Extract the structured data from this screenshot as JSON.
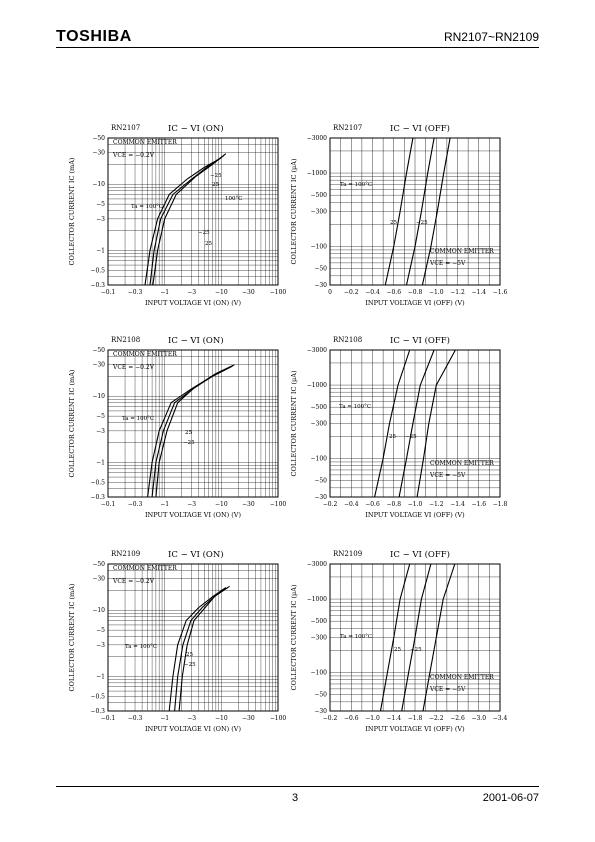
{
  "header": {
    "logo": "TOSHIBA",
    "part_range": "RN2107~RN2109"
  },
  "footer": {
    "page_number": "3",
    "date": "2001-06-07"
  },
  "chart_data": [
    {
      "type": "line",
      "device": "RN2107",
      "title": "IC − VI (ON)",
      "xlabel": "INPUT VOLTAGE  VI (ON)  (V)",
      "ylabel": "COLLECTOR CURRENT  IC  (mA)",
      "x_scale": "log",
      "y_scale": "log",
      "xlim": [
        -0.1,
        -100
      ],
      "ylim": [
        -0.3,
        -50
      ],
      "xticks": [
        "−0.1",
        "−0.3",
        "−1",
        "−3",
        "−10",
        "−30",
        "−100"
      ],
      "yticks": [
        "−50",
        "−30",
        "−10",
        "−5",
        "−3",
        "−1",
        "−0.5",
        "−0.3"
      ],
      "condition": [
        "COMMON EMITTER",
        "VCE = −0.2V"
      ],
      "annotations": [
        "Ta = 100°C",
        "−25",
        "25",
        "−25",
        "25",
        "100°C"
      ],
      "series": [
        {
          "name": "Ta = 100°C",
          "points": [
            [
              -0.45,
              -0.3
            ],
            [
              -0.55,
              -1
            ],
            [
              -0.75,
              -3
            ],
            [
              -1.2,
              -7
            ],
            [
              -2.5,
              -12
            ],
            [
              -5,
              -18
            ],
            [
              -10,
              -25
            ]
          ]
        },
        {
          "name": "25",
          "points": [
            [
              -0.55,
              -0.3
            ],
            [
              -0.65,
              -1
            ],
            [
              -0.85,
              -3
            ],
            [
              -1.4,
              -7
            ],
            [
              -3,
              -12
            ],
            [
              -6,
              -19
            ],
            [
              -11,
              -27
            ]
          ]
        },
        {
          "name": "−25",
          "points": [
            [
              -0.62,
              -0.3
            ],
            [
              -0.75,
              -1
            ],
            [
              -1,
              -3
            ],
            [
              -1.6,
              -7
            ],
            [
              -3.5,
              -13
            ],
            [
              -7,
              -20
            ],
            [
              -12,
              -29
            ]
          ]
        }
      ]
    },
    {
      "type": "line",
      "device": "RN2107",
      "title": "IC − VI (OFF)",
      "xlabel": "INPUT VOLTAGE  VI (OFF)  (V)",
      "ylabel": "COLLECTOR CURRENT  IC  (μA)",
      "x_scale": "linear",
      "y_scale": "log",
      "xlim": [
        0,
        -1.6
      ],
      "ylim": [
        -30,
        -3000
      ],
      "xticks": [
        "0",
        "−0.2",
        "−0.4",
        "−0.6",
        "−0.8",
        "−1.0",
        "−1.2",
        "−1.4",
        "−1.6"
      ],
      "yticks": [
        "−3000",
        "−1000",
        "−500",
        "−300",
        "−100",
        "−50",
        "−30"
      ],
      "condition": [
        "COMMON EMITTER",
        "VCE = −5V"
      ],
      "annotations": [
        "Ta = 100°C",
        "25",
        "−25"
      ],
      "series": [
        {
          "name": "Ta = 100°C",
          "points": [
            [
              -0.52,
              -30
            ],
            [
              -0.6,
              -100
            ],
            [
              -0.66,
              -300
            ],
            [
              -0.72,
              -1000
            ],
            [
              -0.78,
              -3000
            ]
          ]
        },
        {
          "name": "25",
          "points": [
            [
              -0.72,
              -30
            ],
            [
              -0.8,
              -100
            ],
            [
              -0.86,
              -300
            ],
            [
              -0.92,
              -1000
            ],
            [
              -0.98,
              -3000
            ]
          ]
        },
        {
          "name": "−25",
          "points": [
            [
              -0.87,
              -30
            ],
            [
              -0.95,
              -100
            ],
            [
              -1.01,
              -300
            ],
            [
              -1.07,
              -1000
            ],
            [
              -1.13,
              -3000
            ]
          ]
        }
      ]
    },
    {
      "type": "line",
      "device": "RN2108",
      "title": "IC − VI (ON)",
      "xlabel": "INPUT VOLTAGE  VI (ON)  (V)",
      "ylabel": "COLLECTOR CURRENT  IC  (mA)",
      "x_scale": "log",
      "y_scale": "log",
      "xlim": [
        -0.1,
        -100
      ],
      "ylim": [
        -0.3,
        -50
      ],
      "xticks": [
        "−0.1",
        "−0.3",
        "−1",
        "−3",
        "−10",
        "−30",
        "−100"
      ],
      "yticks": [
        "−50",
        "−30",
        "−10",
        "−5",
        "−3",
        "−1",
        "−0.5",
        "−0.3"
      ],
      "condition": [
        "COMMON EMITTER",
        "VCE = −0.2V"
      ],
      "annotations": [
        "Ta = 100°C",
        "25",
        "−25"
      ],
      "series": [
        {
          "name": "Ta = 100°C",
          "points": [
            [
              -0.5,
              -0.3
            ],
            [
              -0.6,
              -1
            ],
            [
              -0.8,
              -3
            ],
            [
              -1.3,
              -8
            ],
            [
              -3,
              -13
            ],
            [
              -7,
              -20
            ],
            [
              -15,
              -28
            ]
          ]
        },
        {
          "name": "25",
          "points": [
            [
              -0.6,
              -0.3
            ],
            [
              -0.7,
              -1
            ],
            [
              -0.95,
              -3
            ],
            [
              -1.5,
              -8
            ],
            [
              -3.2,
              -13
            ],
            [
              -7.5,
              -21
            ],
            [
              -16,
              -29
            ]
          ]
        },
        {
          "name": "−25",
          "points": [
            [
              -0.7,
              -0.3
            ],
            [
              -0.8,
              -1
            ],
            [
              -1.1,
              -3
            ],
            [
              -1.7,
              -8
            ],
            [
              -3.5,
              -14
            ],
            [
              -8,
              -22
            ],
            [
              -17,
              -30
            ]
          ]
        }
      ]
    },
    {
      "type": "line",
      "device": "RN2108",
      "title": "IC − VI (OFF)",
      "xlabel": "INPUT VOLTAGE  VI (OFF)  (V)",
      "ylabel": "COLLECTOR CURRENT  IC  (μA)",
      "x_scale": "linear",
      "y_scale": "log",
      "xlim": [
        -0.2,
        -1.8
      ],
      "ylim": [
        -30,
        -3000
      ],
      "xticks": [
        "−0.2",
        "−0.4",
        "−0.6",
        "−0.8",
        "−1.0",
        "−1.2",
        "−1.4",
        "−1.6",
        "−1.8"
      ],
      "yticks": [
        "−3000",
        "−1000",
        "−500",
        "−300",
        "−100",
        "−50",
        "−30"
      ],
      "condition": [
        "COMMON EMITTER",
        "VCE = −5V"
      ],
      "annotations": [
        "Ta = 100°C",
        "25",
        "−25"
      ],
      "series": [
        {
          "name": "Ta = 100°C",
          "points": [
            [
              -0.62,
              -30
            ],
            [
              -0.7,
              -100
            ],
            [
              -0.76,
              -300
            ],
            [
              -0.84,
              -1000
            ],
            [
              -0.95,
              -3000
            ]
          ]
        },
        {
          "name": "25",
          "points": [
            [
              -0.85,
              -30
            ],
            [
              -0.92,
              -100
            ],
            [
              -0.98,
              -300
            ],
            [
              -1.05,
              -1000
            ],
            [
              -1.18,
              -3000
            ]
          ]
        },
        {
          "name": "−25",
          "points": [
            [
              -1.02,
              -30
            ],
            [
              -1.08,
              -100
            ],
            [
              -1.13,
              -300
            ],
            [
              -1.2,
              -1000
            ],
            [
              -1.38,
              -3000
            ]
          ]
        }
      ]
    },
    {
      "type": "line",
      "device": "RN2109",
      "title": "IC − VI (ON)",
      "xlabel": "INPUT VOLTAGE  VI (ON)  (V)",
      "ylabel": "COLLECTOR CURRENT  IC  (mA)",
      "x_scale": "log",
      "y_scale": "log",
      "xlim": [
        -0.1,
        -100
      ],
      "ylim": [
        -0.3,
        -50
      ],
      "xticks": [
        "−0.1",
        "−0.3",
        "−1",
        "−3",
        "−10",
        "−30",
        "−100"
      ],
      "yticks": [
        "−50",
        "−30",
        "−10",
        "−5",
        "−3",
        "−1",
        "−0.5",
        "−0.3"
      ],
      "condition": [
        "COMMON EMITTER",
        "VCE = −0.2V"
      ],
      "annotations": [
        "Ta = 100°C",
        "25",
        "−25"
      ],
      "series": [
        {
          "name": "Ta = 100°C",
          "points": [
            [
              -1.2,
              -0.3
            ],
            [
              -1.4,
              -1
            ],
            [
              -1.7,
              -3
            ],
            [
              -2.4,
              -7
            ],
            [
              -4,
              -11
            ],
            [
              -7,
              -16
            ],
            [
              -12,
              -22
            ]
          ]
        },
        {
          "name": "25",
          "points": [
            [
              -1.5,
              -0.3
            ],
            [
              -1.7,
              -1
            ],
            [
              -2.1,
              -3
            ],
            [
              -2.9,
              -7
            ],
            [
              -4.6,
              -11
            ],
            [
              -7.5,
              -16
            ],
            [
              -13,
              -22
            ]
          ]
        },
        {
          "name": "−25",
          "points": [
            [
              -1.8,
              -0.3
            ],
            [
              -2.05,
              -1
            ],
            [
              -2.5,
              -3
            ],
            [
              -3.3,
              -7
            ],
            [
              -5.2,
              -11
            ],
            [
              -8,
              -17
            ],
            [
              -14,
              -23
            ]
          ]
        }
      ]
    },
    {
      "type": "line",
      "device": "RN2109",
      "title": "IC − VI (OFF)",
      "xlabel": "INPUT VOLTAGE  VI (OFF)  (V)",
      "ylabel": "COLLECTOR CURRENT  IC  (μA)",
      "x_scale": "linear",
      "y_scale": "log",
      "xlim": [
        -0.2,
        -3.4
      ],
      "ylim": [
        -30,
        -3000
      ],
      "xticks": [
        "−0.2",
        "−0.6",
        "−1.0",
        "−1.4",
        "−1.8",
        "−2.2",
        "−2.6",
        "−3.0",
        "−3.4"
      ],
      "yticks": [
        "−3000",
        "−1000",
        "−500",
        "−300",
        "−100",
        "−50",
        "−30"
      ],
      "condition": [
        "COMMON EMITTER",
        "VCE = −5V"
      ],
      "annotations": [
        "Ta = 100°C",
        "25",
        "−25"
      ],
      "series": [
        {
          "name": "Ta = 100°C",
          "points": [
            [
              -1.15,
              -30
            ],
            [
              -1.28,
              -100
            ],
            [
              -1.4,
              -300
            ],
            [
              -1.52,
              -1000
            ],
            [
              -1.7,
              -3000
            ]
          ]
        },
        {
          "name": "25",
          "points": [
            [
              -1.55,
              -30
            ],
            [
              -1.68,
              -100
            ],
            [
              -1.8,
              -300
            ],
            [
              -1.92,
              -1000
            ],
            [
              -2.1,
              -3000
            ]
          ]
        },
        {
          "name": "−25",
          "points": [
            [
              -1.95,
              -30
            ],
            [
              -2.08,
              -100
            ],
            [
              -2.2,
              -300
            ],
            [
              -2.33,
              -1000
            ],
            [
              -2.55,
              -3000
            ]
          ]
        }
      ]
    }
  ]
}
